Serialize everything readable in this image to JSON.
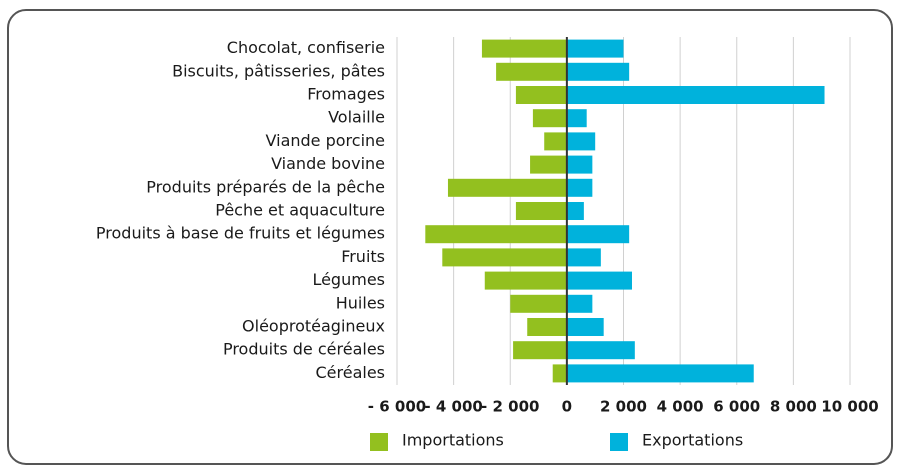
{
  "chart_data": {
    "type": "bar",
    "orientation": "horizontal",
    "stacked": false,
    "categories": [
      "Chocolat, confiserie",
      "Biscuits, pâtisseries, pâtes",
      "Fromages",
      "Volaille",
      "Viande porcine",
      "Viande bovine",
      "Produits préparés de la pêche",
      "Pêche et aquaculture",
      "Produits à base de fruits et légumes",
      "Fruits",
      "Légumes",
      "Huiles",
      "Oléoprotéagineux",
      "Produits de céréales",
      "Céréales"
    ],
    "series": [
      {
        "name": "Importations",
        "color": "#93c01f",
        "values": [
          -3000,
          -2500,
          -1800,
          -1200,
          -800,
          -1300,
          -4200,
          -1800,
          -5000,
          -4400,
          -2900,
          -2000,
          -1400,
          -1900,
          -500
        ]
      },
      {
        "name": "Exportations",
        "color": "#00b2dc",
        "values": [
          2000,
          2200,
          9100,
          700,
          1000,
          900,
          900,
          600,
          2200,
          1200,
          2300,
          900,
          1300,
          2400,
          6600
        ]
      }
    ],
    "xlim": [
      -6000,
      10000
    ],
    "xticks": [
      {
        "value": -6000,
        "label": "- 6 000"
      },
      {
        "value": -4000,
        "label": "- 4 000"
      },
      {
        "value": -2000,
        "label": "- 2 000"
      },
      0,
      {
        "value": 2000,
        "label": "2 000"
      },
      {
        "value": 4000,
        "label": "4 000"
      },
      {
        "value": 6000,
        "label": "6 000"
      },
      {
        "value": 8000,
        "label": "8 000"
      },
      {
        "value": 10000,
        "label": "10 000"
      }
    ],
    "grid": true,
    "legend": "bottom"
  }
}
